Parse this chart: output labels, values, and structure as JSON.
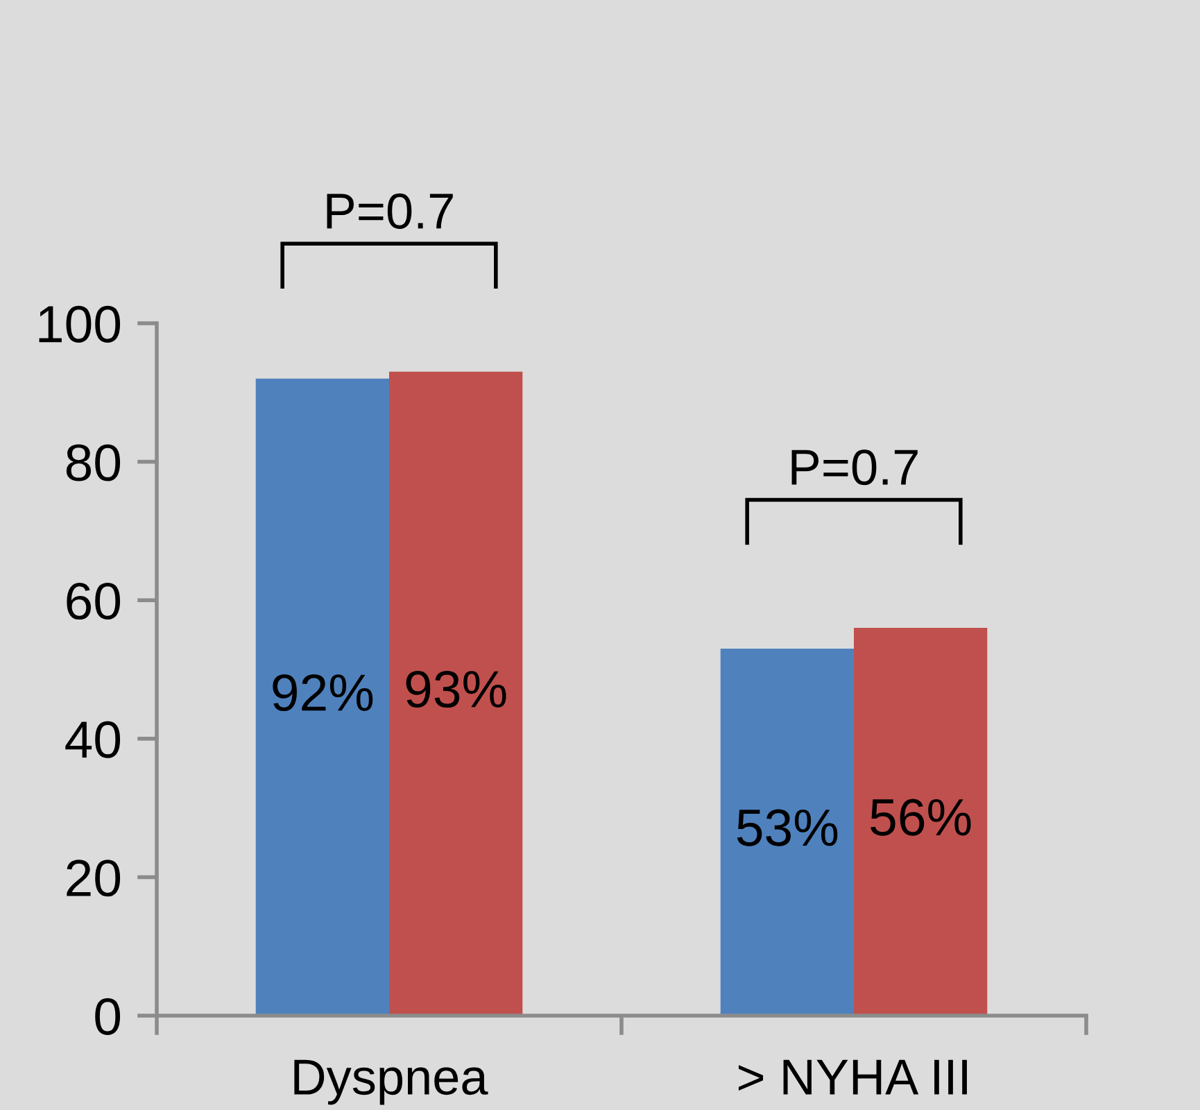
{
  "chart_data": {
    "type": "bar",
    "categories": [
      "Dyspnea",
      "> NYHA III"
    ],
    "series": [
      {
        "color": "#4f81bd",
        "values": [
          92,
          53
        ],
        "value_labels": [
          "92%",
          "53%"
        ]
      },
      {
        "color": "#c0504d",
        "values": [
          93,
          56
        ],
        "value_labels": [
          "93%",
          "56%"
        ]
      }
    ],
    "ylim": [
      0,
      100
    ],
    "yticks": [
      0,
      20,
      40,
      60,
      80,
      100
    ],
    "annotations": [
      "P=0.7",
      "P=0.7"
    ]
  }
}
